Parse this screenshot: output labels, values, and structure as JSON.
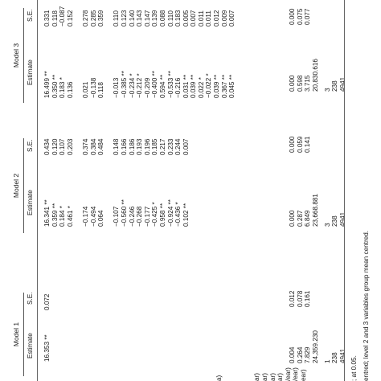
{
  "header": {
    "models": [
      "Model 1",
      "Model 2",
      "Model 3"
    ],
    "estimate_label": "Estimate",
    "se_label": "S.E."
  },
  "row_labels": [
    "a)",
    "",
    "",
    "",
    "ar)",
    "ar)",
    "ar)",
    "ar)",
    "/ear)",
    "/ear)",
    "ear)"
  ],
  "model1": {
    "estimates": [
      "16.353 **"
    ],
    "ses": [
      "0.072"
    ],
    "random_estimates": [
      "0.004",
      "0.264",
      "7.829",
      "24,359.230",
      "1",
      "238",
      "4941"
    ],
    "random_ses": [
      "0.012",
      "0.078",
      "0.161"
    ]
  },
  "model2": {
    "estimates": [
      "16.341 **",
      "0.359 **",
      "0.184 *",
      "0.461 *",
      "",
      "−0.174",
      "−0.494",
      "0.064",
      "",
      "−0.107",
      "−0.560 **",
      "−0.246",
      "−0.268",
      "−0.177",
      "−0.425 *",
      "0.958 **",
      "−0.924 **",
      "−0.436 *",
      "0.102 **"
    ],
    "ses": [
      "0.434",
      "0.120",
      "0.107",
      "0.203",
      "",
      "0.374",
      "0.384",
      "0.484",
      "",
      "0.148",
      "0.166",
      "0.186",
      "0.193",
      "0.196",
      "0.185",
      "0.217",
      "0.233",
      "0.244",
      "0.007"
    ],
    "random_estimates": [
      "0.000",
      "0.287",
      "6.849",
      "23,668.881",
      "3",
      "238",
      "4941"
    ],
    "random_ses": [
      "0.000",
      "0.059",
      "0.141"
    ]
  },
  "model3": {
    "estimates": [
      "16.499 **",
      "0.350 **",
      "0.183 *",
      "0.136",
      "",
      "0.021",
      "−0.138",
      "0.118",
      "",
      "−0.013",
      "−0.385 **",
      "−0.234 *",
      "−0.212 *",
      "−0.209",
      "−0.400 **",
      "0.594 **",
      "−0.533 **",
      "−0.216",
      "0.031 **",
      "0.039 **",
      "0.022 *",
      "−0.022 *",
      "0.039 **",
      "0.367 **",
      "0.045 **"
    ],
    "ses": [
      "0.331",
      "0.118",
      "−0.087",
      "0.152",
      "",
      "0.278",
      "0.285",
      "0.359",
      "",
      "0.110",
      "0.123",
      "0.140",
      "0.143",
      "0.147",
      "0.139",
      "0.088",
      "0.110",
      "0.183",
      "0.005",
      "0.007",
      "0.011",
      "0.011",
      "0.012",
      "0.009",
      "0.007"
    ],
    "random_estimates": [
      "0.000",
      "0.598",
      "3.715",
      "20,830.616",
      "3",
      "238",
      "4941"
    ],
    "random_ses": [
      "0.000",
      "0.075",
      "0.077"
    ]
  },
  "footnotes": {
    "sig": "; at 0.05.",
    "centring": "entred; level 2 and 3 variables group mean centred."
  }
}
